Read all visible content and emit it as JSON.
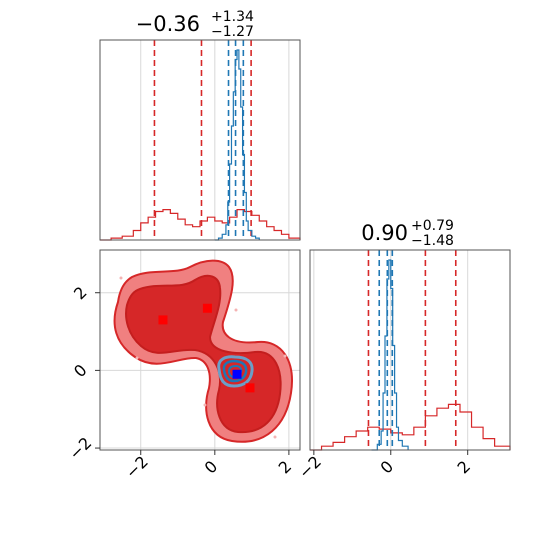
{
  "chart_data": [
    {
      "type": "line",
      "panel": "marginal-histogram-x",
      "title_value": "−0.36",
      "title_plus": "+1.34",
      "title_minus": "−1.27",
      "xlim": [
        -3.1,
        2.3
      ],
      "grid": true,
      "series": [
        {
          "color": "#d62728",
          "x": [
            -3.1,
            -2.8,
            -2.5,
            -2.2,
            -2.0,
            -1.8,
            -1.6,
            -1.4,
            -1.2,
            -1.0,
            -0.8,
            -0.6,
            -0.4,
            -0.2,
            0.0,
            0.2,
            0.4,
            0.6,
            0.8,
            1.0,
            1.2,
            1.4,
            1.6,
            1.8,
            2.0,
            2.3
          ],
          "y": [
            0,
            0.01,
            0.02,
            0.05,
            0.09,
            0.12,
            0.15,
            0.16,
            0.14,
            0.11,
            0.08,
            0.07,
            0.1,
            0.12,
            0.1,
            0.09,
            0.12,
            0.16,
            0.15,
            0.13,
            0.1,
            0.07,
            0.05,
            0.03,
            0.01,
            0
          ],
          "quantiles": [
            -1.63,
            -0.36,
            0.98
          ]
        },
        {
          "color": "#1f77b4",
          "x": [
            0.0,
            0.1,
            0.2,
            0.3,
            0.35,
            0.4,
            0.45,
            0.5,
            0.55,
            0.6,
            0.65,
            0.7,
            0.75,
            0.8,
            0.85,
            0.9,
            1.0,
            1.1,
            1.2
          ],
          "y": [
            0,
            0.01,
            0.03,
            0.08,
            0.2,
            0.4,
            0.6,
            0.78,
            0.95,
            1.0,
            0.9,
            0.7,
            0.45,
            0.25,
            0.1,
            0.05,
            0.02,
            0.01,
            0
          ],
          "quantiles": [
            0.37,
            0.56,
            0.77
          ]
        }
      ]
    },
    {
      "type": "line",
      "panel": "marginal-histogram-y",
      "title_value": "0.90",
      "title_plus": "+0.79",
      "title_minus": "−1.48",
      "xlim": [
        -2.1,
        3.1
      ],
      "xticks": [
        "−2",
        "0",
        "2"
      ],
      "grid": true,
      "series": [
        {
          "color": "#d62728",
          "x": [
            -2.1,
            -1.8,
            -1.5,
            -1.2,
            -0.9,
            -0.6,
            -0.3,
            0.0,
            0.3,
            0.6,
            0.9,
            1.2,
            1.5,
            1.8,
            2.1,
            2.4,
            2.7,
            3.1
          ],
          "y": [
            0,
            0.02,
            0.04,
            0.07,
            0.1,
            0.12,
            0.11,
            0.09,
            0.08,
            0.12,
            0.18,
            0.22,
            0.24,
            0.2,
            0.12,
            0.06,
            0.02,
            0
          ],
          "quantiles": [
            -0.58,
            0.9,
            1.69
          ]
        },
        {
          "color": "#1f77b4",
          "x": [
            -0.5,
            -0.35,
            -0.25,
            -0.2,
            -0.15,
            -0.1,
            -0.05,
            0.0,
            0.05,
            0.1,
            0.15,
            0.2,
            0.3,
            0.45
          ],
          "y": [
            0,
            0.03,
            0.1,
            0.3,
            0.6,
            0.9,
            1.0,
            0.85,
            0.55,
            0.3,
            0.12,
            0.05,
            0.02,
            0
          ],
          "quantiles": [
            -0.3,
            -0.09,
            0.04
          ]
        }
      ]
    },
    {
      "type": "scatter",
      "panel": "joint-contour",
      "xlim": [
        -3.1,
        2.3
      ],
      "ylim": [
        -2.05,
        3.1
      ],
      "xticks": [
        "−2",
        "0",
        "2"
      ],
      "yticks": [
        "−2",
        "0",
        "2"
      ],
      "grid": true,
      "markers": [
        {
          "color": "#ff0000",
          "x": -1.4,
          "y": 1.3
        },
        {
          "color": "#ff0000",
          "x": -0.2,
          "y": 1.6
        },
        {
          "color": "#ff0000",
          "x": 0.95,
          "y": -0.45
        },
        {
          "color": "#0000ff",
          "x": 0.6,
          "y": -0.1
        }
      ]
    }
  ]
}
